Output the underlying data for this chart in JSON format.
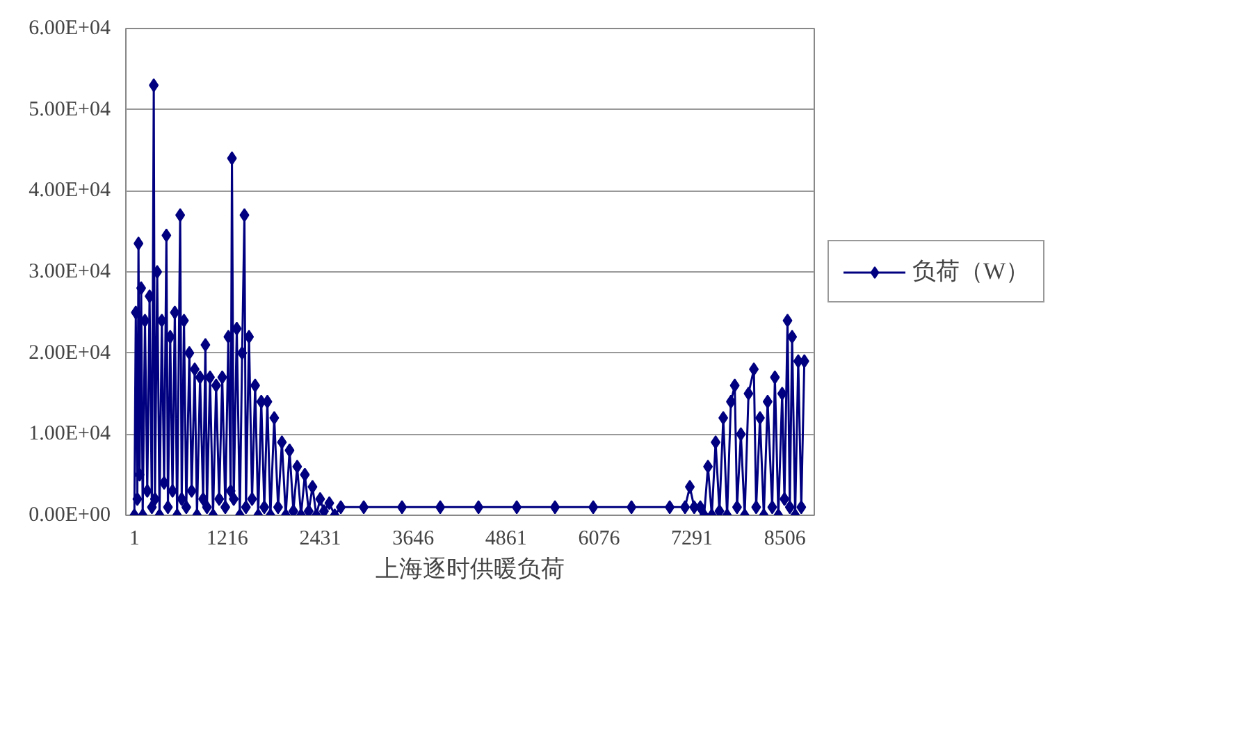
{
  "chart_data": {
    "type": "line",
    "xlabel": "上海逐时供暖负荷",
    "x": [
      1,
      20,
      40,
      55,
      70,
      90,
      110,
      140,
      170,
      200,
      230,
      255,
      270,
      300,
      330,
      360,
      390,
      420,
      440,
      470,
      500,
      530,
      560,
      600,
      620,
      650,
      680,
      720,
      750,
      790,
      820,
      860,
      900,
      930,
      950,
      990,
      1030,
      1070,
      1110,
      1150,
      1190,
      1230,
      1260,
      1277,
      1300,
      1340,
      1380,
      1410,
      1440,
      1460,
      1500,
      1540,
      1580,
      1620,
      1660,
      1700,
      1740,
      1780,
      1830,
      1880,
      1930,
      1980,
      2030,
      2080,
      2130,
      2180,
      2230,
      2280,
      2330,
      2380,
      2430,
      2480,
      2550,
      2620,
      2700,
      3000,
      3500,
      4000,
      4500,
      5000,
      5500,
      6000,
      6500,
      7000,
      7200,
      7263,
      7320,
      7400,
      7450,
      7500,
      7550,
      7600,
      7650,
      7700,
      7750,
      7800,
      7850,
      7880,
      7930,
      7980,
      8030,
      8100,
      8130,
      8180,
      8230,
      8280,
      8340,
      8375,
      8420,
      8470,
      8500,
      8540,
      8570,
      8600,
      8640,
      8680,
      8720,
      8760
    ],
    "series": [
      {
        "name": "负荷（W）",
        "color": "#000080",
        "values": [
          0,
          25000,
          2000,
          33500,
          5000,
          28000,
          0,
          24000,
          3000,
          27000,
          1000,
          53000,
          2000,
          30000,
          0,
          24000,
          4000,
          34500,
          1000,
          22000,
          3000,
          25000,
          0,
          37000,
          2000,
          24000,
          1000,
          20000,
          3000,
          18000,
          0,
          17000,
          2000,
          21000,
          1000,
          17000,
          0,
          16000,
          2000,
          17000,
          1000,
          22000,
          3000,
          44000,
          2000,
          23000,
          0,
          20000,
          37000,
          1000,
          22000,
          2000,
          16000,
          0,
          14000,
          1000,
          14000,
          0,
          12000,
          1000,
          9000,
          0,
          8000,
          500,
          6000,
          0,
          5000,
          500,
          3500,
          0,
          2000,
          500,
          1500,
          0,
          1000,
          1000,
          1000,
          1000,
          1000,
          1000,
          1000,
          1000,
          1000,
          1000,
          1000,
          3500,
          1000,
          1000,
          0,
          6000,
          0,
          9000,
          500,
          12000,
          0,
          14000,
          16000,
          1000,
          10000,
          0,
          15000,
          18000,
          1000,
          12000,
          0,
          14000,
          1000,
          17000,
          0,
          15000,
          2000,
          24000,
          1000,
          22000,
          0,
          19000,
          1000,
          19000
        ]
      }
    ],
    "xlim": [
      -110,
      8890
    ],
    "ylim": [
      0,
      60000
    ],
    "xticks": [
      1,
      1216,
      2431,
      3646,
      4861,
      6076,
      7291,
      8506
    ],
    "yticks": [
      {
        "value": 0,
        "label": "0.00E+00"
      },
      {
        "value": 10000,
        "label": "1.00E+04"
      },
      {
        "value": 20000,
        "label": "2.00E+04"
      },
      {
        "value": 30000,
        "label": "3.00E+04"
      },
      {
        "value": 40000,
        "label": "4.00E+04"
      },
      {
        "value": 50000,
        "label": "5.00E+04"
      },
      {
        "value": 60000,
        "label": "6.00E+04"
      }
    ],
    "grid": "y",
    "legend": "right",
    "marker": "diamond",
    "line_style": "solid"
  }
}
